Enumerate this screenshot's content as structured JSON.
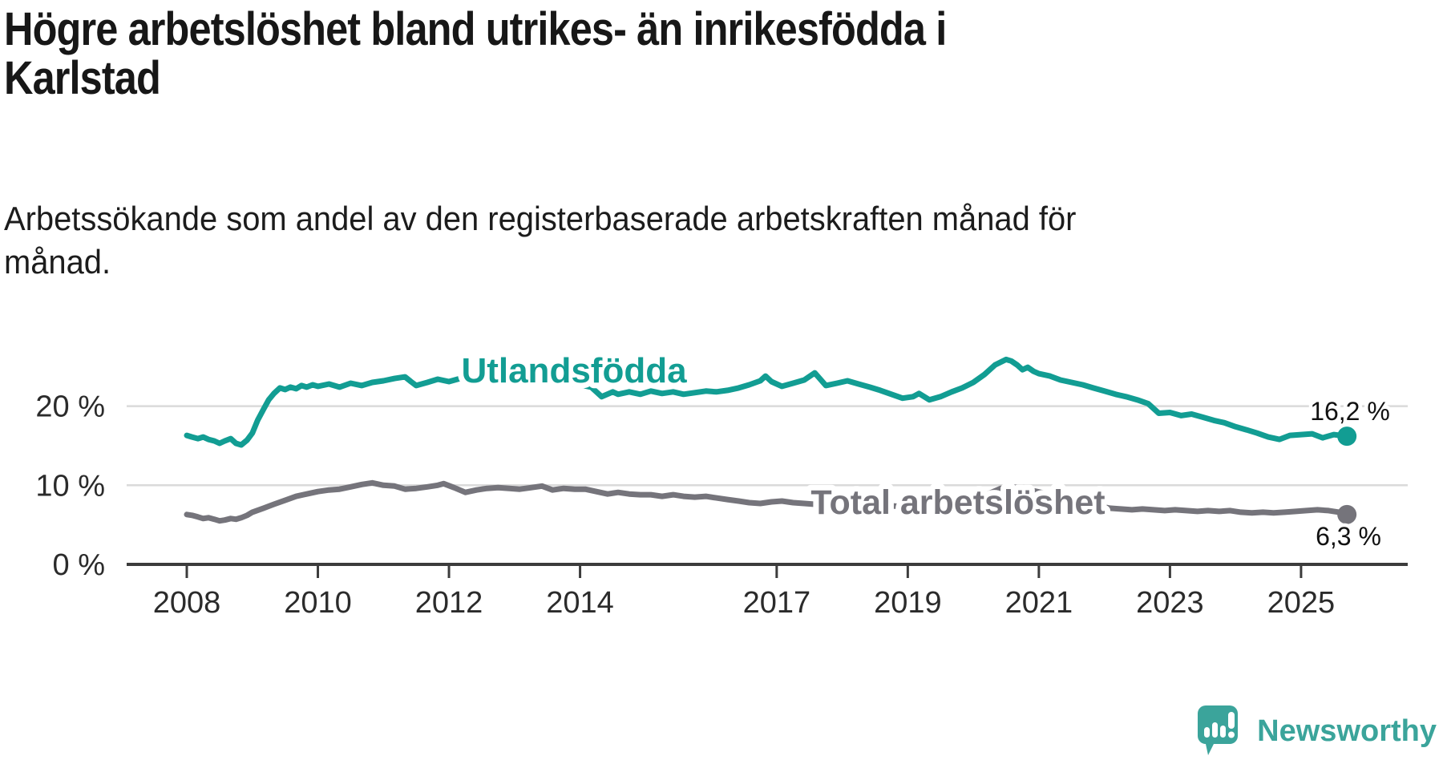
{
  "header": {
    "title_lines": [
      "Högre arbetslöshet bland utrikes- än inrikesfödda i",
      "Karlstad"
    ],
    "subtitle_lines": [
      "Arbetssökande som andel av den registerbaserade arbetskraften månad för",
      "månad."
    ]
  },
  "chart_data": {
    "type": "line",
    "title": "Högre arbetslöshet bland utrikes- än inrikesfödda i Karlstad",
    "subtitle": "Arbetssökande som andel av den registerbaserade arbetskraften månad för månad.",
    "xlabel": "",
    "ylabel": "",
    "unit_suffix": " %",
    "grid": "horizontal",
    "legend_position": "inline-labels",
    "xlim": [
      2007.6,
      2026.2
    ],
    "ylim": [
      0,
      28
    ],
    "x_ticks": [
      2008,
      2010,
      2012,
      2014,
      2017,
      2019,
      2021,
      2023,
      2025
    ],
    "y_ticks": [
      {
        "value": 0,
        "label": "0 %"
      },
      {
        "value": 10,
        "label": "10 %"
      },
      {
        "value": 20,
        "label": "20 %"
      }
    ],
    "series": [
      {
        "name": "Utlandsfödda",
        "color": "#129d93",
        "end_label": "16,2 %",
        "end_value": 16.2,
        "points": [
          [
            2008.0,
            16.3
          ],
          [
            2008.08,
            16.1
          ],
          [
            2008.17,
            15.9
          ],
          [
            2008.25,
            16.1
          ],
          [
            2008.33,
            15.8
          ],
          [
            2008.42,
            15.6
          ],
          [
            2008.5,
            15.3
          ],
          [
            2008.58,
            15.6
          ],
          [
            2008.67,
            15.9
          ],
          [
            2008.75,
            15.3
          ],
          [
            2008.83,
            15.1
          ],
          [
            2008.92,
            15.7
          ],
          [
            2009.0,
            16.6
          ],
          [
            2009.08,
            18.2
          ],
          [
            2009.17,
            19.6
          ],
          [
            2009.25,
            20.8
          ],
          [
            2009.33,
            21.6
          ],
          [
            2009.42,
            22.3
          ],
          [
            2009.5,
            22.1
          ],
          [
            2009.58,
            22.4
          ],
          [
            2009.67,
            22.2
          ],
          [
            2009.75,
            22.6
          ],
          [
            2009.83,
            22.4
          ],
          [
            2009.92,
            22.7
          ],
          [
            2010.0,
            22.5
          ],
          [
            2010.17,
            22.8
          ],
          [
            2010.33,
            22.4
          ],
          [
            2010.5,
            22.9
          ],
          [
            2010.67,
            22.6
          ],
          [
            2010.83,
            23.0
          ],
          [
            2011.0,
            23.2
          ],
          [
            2011.17,
            23.5
          ],
          [
            2011.33,
            23.7
          ],
          [
            2011.42,
            23.1
          ],
          [
            2011.5,
            22.6
          ],
          [
            2011.67,
            23.0
          ],
          [
            2011.83,
            23.4
          ],
          [
            2012.0,
            23.1
          ],
          [
            2012.17,
            23.5
          ],
          [
            2012.33,
            23.3
          ],
          [
            2012.5,
            23.5
          ],
          [
            2012.67,
            23.3
          ],
          [
            2012.83,
            23.1
          ],
          [
            2013.0,
            23.4
          ],
          [
            2013.17,
            23.1
          ],
          [
            2013.33,
            23.3
          ],
          [
            2013.5,
            23.0
          ],
          [
            2013.67,
            23.2
          ],
          [
            2013.83,
            22.9
          ],
          [
            2014.0,
            22.7
          ],
          [
            2014.17,
            22.4
          ],
          [
            2014.33,
            21.2
          ],
          [
            2014.5,
            21.8
          ],
          [
            2014.58,
            21.5
          ],
          [
            2014.75,
            21.8
          ],
          [
            2014.92,
            21.5
          ],
          [
            2015.08,
            21.9
          ],
          [
            2015.25,
            21.6
          ],
          [
            2015.42,
            21.8
          ],
          [
            2015.58,
            21.5
          ],
          [
            2015.75,
            21.7
          ],
          [
            2015.92,
            21.9
          ],
          [
            2016.08,
            21.8
          ],
          [
            2016.25,
            22.0
          ],
          [
            2016.42,
            22.3
          ],
          [
            2016.58,
            22.7
          ],
          [
            2016.75,
            23.2
          ],
          [
            2016.83,
            23.8
          ],
          [
            2016.92,
            23.1
          ],
          [
            2017.08,
            22.5
          ],
          [
            2017.25,
            22.9
          ],
          [
            2017.42,
            23.3
          ],
          [
            2017.58,
            24.2
          ],
          [
            2017.75,
            22.6
          ],
          [
            2017.92,
            22.9
          ],
          [
            2018.08,
            23.2
          ],
          [
            2018.25,
            22.8
          ],
          [
            2018.42,
            22.4
          ],
          [
            2018.58,
            22.0
          ],
          [
            2018.75,
            21.5
          ],
          [
            2018.92,
            21.0
          ],
          [
            2019.08,
            21.2
          ],
          [
            2019.17,
            21.6
          ],
          [
            2019.33,
            20.8
          ],
          [
            2019.5,
            21.2
          ],
          [
            2019.67,
            21.8
          ],
          [
            2019.83,
            22.3
          ],
          [
            2020.0,
            23.0
          ],
          [
            2020.17,
            24.0
          ],
          [
            2020.33,
            25.2
          ],
          [
            2020.5,
            25.9
          ],
          [
            2020.58,
            25.7
          ],
          [
            2020.67,
            25.2
          ],
          [
            2020.75,
            24.6
          ],
          [
            2020.83,
            24.9
          ],
          [
            2020.92,
            24.4
          ],
          [
            2021.0,
            24.1
          ],
          [
            2021.17,
            23.8
          ],
          [
            2021.33,
            23.3
          ],
          [
            2021.5,
            23.0
          ],
          [
            2021.67,
            22.7
          ],
          [
            2021.83,
            22.3
          ],
          [
            2022.0,
            21.9
          ],
          [
            2022.17,
            21.5
          ],
          [
            2022.33,
            21.2
          ],
          [
            2022.5,
            20.8
          ],
          [
            2022.67,
            20.3
          ],
          [
            2022.83,
            19.1
          ],
          [
            2023.0,
            19.2
          ],
          [
            2023.17,
            18.8
          ],
          [
            2023.33,
            19.0
          ],
          [
            2023.5,
            18.6
          ],
          [
            2023.67,
            18.2
          ],
          [
            2023.83,
            17.9
          ],
          [
            2024.0,
            17.4
          ],
          [
            2024.17,
            17.0
          ],
          [
            2024.33,
            16.6
          ],
          [
            2024.5,
            16.1
          ],
          [
            2024.67,
            15.8
          ],
          [
            2024.83,
            16.3
          ],
          [
            2025.0,
            16.4
          ],
          [
            2025.17,
            16.5
          ],
          [
            2025.33,
            16.0
          ],
          [
            2025.5,
            16.4
          ],
          [
            2025.6,
            16.3
          ],
          [
            2025.7,
            16.2
          ]
        ]
      },
      {
        "name": "Total arbetslöshet",
        "color": "#75747b",
        "end_label": "6,3 %",
        "end_value": 6.3,
        "points": [
          [
            2008.0,
            6.3
          ],
          [
            2008.08,
            6.2
          ],
          [
            2008.17,
            6.0
          ],
          [
            2008.25,
            5.8
          ],
          [
            2008.33,
            5.9
          ],
          [
            2008.42,
            5.7
          ],
          [
            2008.5,
            5.5
          ],
          [
            2008.58,
            5.6
          ],
          [
            2008.67,
            5.8
          ],
          [
            2008.75,
            5.7
          ],
          [
            2008.83,
            5.9
          ],
          [
            2008.92,
            6.2
          ],
          [
            2009.0,
            6.6
          ],
          [
            2009.17,
            7.1
          ],
          [
            2009.33,
            7.6
          ],
          [
            2009.5,
            8.1
          ],
          [
            2009.67,
            8.6
          ],
          [
            2009.83,
            8.9
          ],
          [
            2010.0,
            9.2
          ],
          [
            2010.17,
            9.4
          ],
          [
            2010.33,
            9.5
          ],
          [
            2010.5,
            9.8
          ],
          [
            2010.67,
            10.1
          ],
          [
            2010.83,
            10.3
          ],
          [
            2011.0,
            10.0
          ],
          [
            2011.17,
            9.9
          ],
          [
            2011.33,
            9.5
          ],
          [
            2011.5,
            9.6
          ],
          [
            2011.67,
            9.8
          ],
          [
            2011.83,
            10.0
          ],
          [
            2011.92,
            10.2
          ],
          [
            2012.08,
            9.7
          ],
          [
            2012.25,
            9.1
          ],
          [
            2012.42,
            9.4
          ],
          [
            2012.58,
            9.6
          ],
          [
            2012.75,
            9.7
          ],
          [
            2012.92,
            9.6
          ],
          [
            2013.08,
            9.5
          ],
          [
            2013.25,
            9.7
          ],
          [
            2013.42,
            9.9
          ],
          [
            2013.58,
            9.4
          ],
          [
            2013.75,
            9.6
          ],
          [
            2013.92,
            9.5
          ],
          [
            2014.08,
            9.5
          ],
          [
            2014.25,
            9.2
          ],
          [
            2014.42,
            8.9
          ],
          [
            2014.58,
            9.1
          ],
          [
            2014.75,
            8.9
          ],
          [
            2014.92,
            8.8
          ],
          [
            2015.08,
            8.8
          ],
          [
            2015.25,
            8.6
          ],
          [
            2015.42,
            8.8
          ],
          [
            2015.58,
            8.6
          ],
          [
            2015.75,
            8.5
          ],
          [
            2015.92,
            8.6
          ],
          [
            2016.08,
            8.4
          ],
          [
            2016.25,
            8.2
          ],
          [
            2016.42,
            8.0
          ],
          [
            2016.58,
            7.8
          ],
          [
            2016.75,
            7.7
          ],
          [
            2016.92,
            7.9
          ],
          [
            2017.08,
            8.0
          ],
          [
            2017.25,
            7.8
          ],
          [
            2017.42,
            7.7
          ],
          [
            2017.58,
            7.6
          ],
          [
            2017.75,
            7.5
          ],
          [
            2017.92,
            7.7
          ],
          [
            2018.08,
            7.6
          ],
          [
            2018.25,
            7.5
          ],
          [
            2018.42,
            7.4
          ],
          [
            2018.58,
            7.3
          ],
          [
            2018.75,
            7.4
          ],
          [
            2018.92,
            7.3
          ],
          [
            2019.08,
            7.4
          ],
          [
            2019.25,
            7.5
          ],
          [
            2019.42,
            7.6
          ],
          [
            2019.58,
            7.7
          ],
          [
            2019.75,
            7.8
          ],
          [
            2019.92,
            8.0
          ],
          [
            2020.08,
            8.4
          ],
          [
            2020.25,
            9.0
          ],
          [
            2020.42,
            9.6
          ],
          [
            2020.58,
            9.8
          ],
          [
            2020.75,
            9.6
          ],
          [
            2020.92,
            9.3
          ],
          [
            2021.08,
            9.0
          ],
          [
            2021.25,
            8.7
          ],
          [
            2021.42,
            8.4
          ],
          [
            2021.58,
            8.1
          ],
          [
            2021.75,
            7.8
          ],
          [
            2021.92,
            7.4
          ],
          [
            2022.08,
            7.1
          ],
          [
            2022.25,
            7.0
          ],
          [
            2022.42,
            6.9
          ],
          [
            2022.58,
            7.0
          ],
          [
            2022.75,
            6.9
          ],
          [
            2022.92,
            6.8
          ],
          [
            2023.08,
            6.9
          ],
          [
            2023.25,
            6.8
          ],
          [
            2023.42,
            6.7
          ],
          [
            2023.58,
            6.8
          ],
          [
            2023.75,
            6.7
          ],
          [
            2023.92,
            6.8
          ],
          [
            2024.08,
            6.6
          ],
          [
            2024.25,
            6.5
          ],
          [
            2024.42,
            6.6
          ],
          [
            2024.58,
            6.5
          ],
          [
            2024.75,
            6.6
          ],
          [
            2024.92,
            6.7
          ],
          [
            2025.08,
            6.8
          ],
          [
            2025.25,
            6.9
          ],
          [
            2025.42,
            6.8
          ],
          [
            2025.58,
            6.6
          ],
          [
            2025.7,
            6.3
          ]
        ]
      }
    ],
    "colors": {
      "teal": "#129d93",
      "gray": "#75747b",
      "grid": "#dadada",
      "axis": "#3c3c3c",
      "tick_text": "#2b2b2b",
      "end_label_text": "#111111"
    }
  },
  "footer": {
    "brand": "Newsworthy",
    "brand_color": "#3ba49b",
    "logo_icon": "speech-bubble-bar-chart-exclamation"
  }
}
